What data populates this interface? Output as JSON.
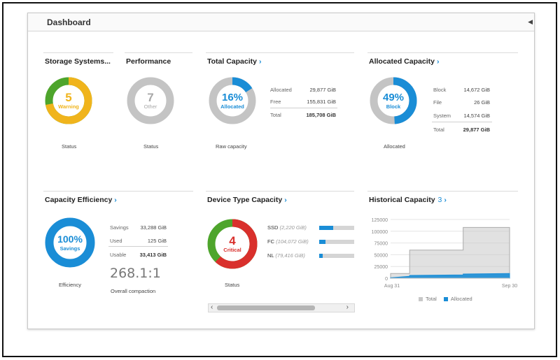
{
  "header": {
    "title": "Dashboard"
  },
  "colors": {
    "accent": "#1a8dd6",
    "warning": "#f0b41c",
    "ok": "#4ea52c",
    "critical": "#d9302c",
    "neutral": "#c4c4c4"
  },
  "storage_systems": {
    "title": "Storage Systems...",
    "count": "5",
    "status_word": "Warning",
    "caption": "Status",
    "warning_fraction": 0.72
  },
  "performance": {
    "title": "Performance",
    "count": "7",
    "status_word": "Other",
    "caption": "Status"
  },
  "total_capacity": {
    "title": "Total Capacity",
    "percent": "16%",
    "label": "Allocated",
    "fraction": 0.16,
    "caption": "Raw capacity",
    "rows": [
      {
        "label": "Allocated",
        "value": "29,877 GiB"
      },
      {
        "label": "Free",
        "value": "155,831 GiB"
      },
      {
        "label": "Total",
        "value": "185,708 GiB"
      }
    ]
  },
  "allocated_capacity": {
    "title": "Allocated Capacity",
    "percent": "49%",
    "label": "Block",
    "fraction": 0.49,
    "caption": "Allocated",
    "rows": [
      {
        "label": "Block",
        "value": "14,672 GiB"
      },
      {
        "label": "File",
        "value": "26 GiB"
      },
      {
        "label": "System",
        "value": "14,574 GiB"
      },
      {
        "label": "Total",
        "value": "29,877 GiB"
      }
    ]
  },
  "capacity_efficiency": {
    "title": "Capacity Efficiency",
    "percent": "100%",
    "label": "Savings",
    "caption": "Efficiency",
    "rows": [
      {
        "label": "Savings",
        "value": "33,288 GiB"
      },
      {
        "label": "Used",
        "value": "125 GiB"
      },
      {
        "label": "Usable",
        "value": "33,413 GiB"
      }
    ],
    "ratio": "268.1:1",
    "ratio_label": "Overall compaction"
  },
  "device_type_capacity": {
    "title": "Device Type Capacity",
    "count": "4",
    "status_word": "Critical",
    "caption": "Status",
    "critical_fraction": 0.62,
    "devices": [
      {
        "name": "SSD",
        "detail": "(2,220 GiB)",
        "fill": 0.4
      },
      {
        "name": "FC",
        "detail": "(104,072 GiB)",
        "fill": 0.18
      },
      {
        "name": "NL",
        "detail": "(79,416 GiB)",
        "fill": 0.1
      }
    ],
    "scroll_left": "‹",
    "scroll_right": "›"
  },
  "historical_capacity": {
    "title": "Historical Capacity",
    "count": "3",
    "legend": [
      {
        "name": "Total",
        "color": "#c8c8c8"
      },
      {
        "name": "Allocated",
        "color": "#1a8dd6"
      }
    ],
    "y_ticks": [
      "125000",
      "100000",
      "75000",
      "50000",
      "25000",
      "0"
    ],
    "x_ticks": [
      "Aug 31",
      "Sep 30"
    ]
  },
  "chart_data": {
    "type": "area",
    "x": [
      "Aug 31",
      "Sep 5",
      "Sep 6",
      "Sep 20",
      "Sep 21",
      "Sep 30"
    ],
    "series": [
      {
        "name": "Total",
        "values": [
          10000,
          10000,
          60000,
          60000,
          108000,
          108000
        ]
      },
      {
        "name": "Allocated",
        "values": [
          1000,
          4000,
          6000,
          7000,
          9000,
          10000
        ]
      }
    ],
    "ylim": [
      0,
      125000
    ],
    "xlabel": "",
    "ylabel": "",
    "grid": true,
    "legend": "bottom"
  }
}
